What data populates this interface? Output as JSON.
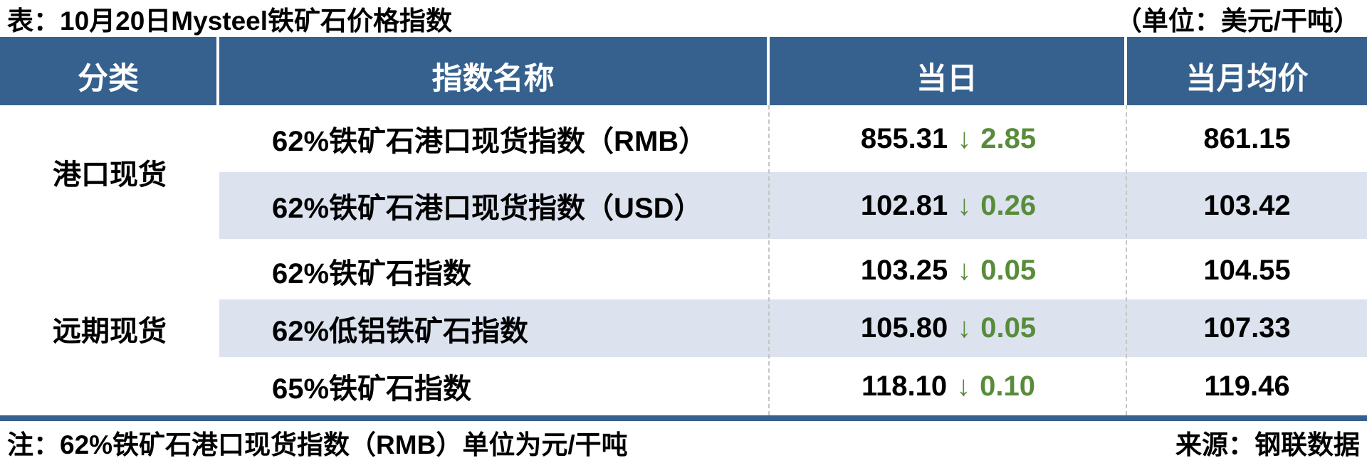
{
  "chart_data": {
    "type": "table",
    "title": "表：10月20日Mysteel铁矿石价格指数",
    "unit_note": "（单位：美元/干吨）",
    "footnote": "注：62%铁矿石港口现货指数（RMB）单位为元/干吨",
    "source_note": "来源：钢联数据",
    "columns": [
      "分类",
      "指数名称",
      "当日",
      "当月均价"
    ],
    "groups": [
      {
        "category": "港口现货",
        "row_indices": [
          0,
          1
        ]
      },
      {
        "category": "远期现货",
        "row_indices": [
          2,
          3,
          4
        ]
      }
    ],
    "rows": [
      {
        "category": "港口现货",
        "name": "62%铁矿石港口现货指数（RMB）",
        "daily": "855.31",
        "change": "2.85",
        "direction": "down",
        "monthly_avg": "861.15"
      },
      {
        "category": "港口现货",
        "name": "62%铁矿石港口现货指数（USD）",
        "daily": "102.81",
        "change": "0.26",
        "direction": "down",
        "monthly_avg": "103.42"
      },
      {
        "category": "远期现货",
        "name": "62%铁矿石指数",
        "daily": "103.25",
        "change": "0.05",
        "direction": "down",
        "monthly_avg": "104.55"
      },
      {
        "category": "远期现货",
        "name": "62%低铝铁矿石指数",
        "daily": "105.80",
        "change": "0.05",
        "direction": "down",
        "monthly_avg": "107.33"
      },
      {
        "category": "远期现货",
        "name": "65%铁矿石指数",
        "daily": "118.10",
        "change": "0.10",
        "direction": "down",
        "monthly_avg": "119.46"
      }
    ]
  },
  "icons": {
    "down_arrow": "↓"
  },
  "colors": {
    "header_bg": "#36618E",
    "zebra_row": "#DCE3EF",
    "decline_green": "#588C3A",
    "text": "#000000"
  }
}
